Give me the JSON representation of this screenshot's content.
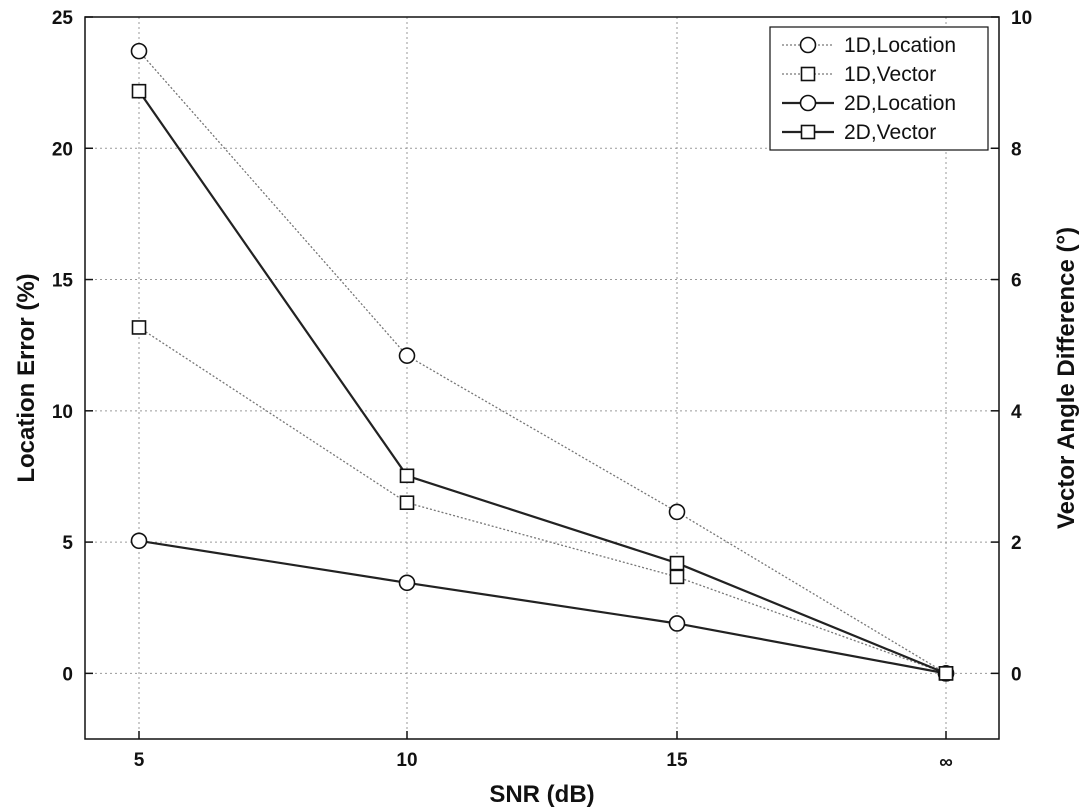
{
  "chart_data": {
    "type": "line",
    "x_axis": {
      "label": "SNR (dB)",
      "categories": [
        "5",
        "10",
        "15",
        "∞"
      ]
    },
    "y_axis_left": {
      "label": "Location Error (%)",
      "ylim": [
        -2.5,
        25
      ],
      "ticks": [
        0,
        5,
        10,
        15,
        20,
        25
      ]
    },
    "y_axis_right": {
      "label": "Vector Angle Difference (°)",
      "ylim": [
        -1,
        10
      ],
      "ticks": [
        0,
        2,
        4,
        6,
        8,
        10
      ]
    },
    "grid": true,
    "legend_position": "top-right",
    "series": [
      {
        "name": "1D,Location",
        "axis": "left",
        "marker": "circle",
        "line_style": "dotted",
        "values": [
          23.7,
          12.1,
          6.15,
          0
        ]
      },
      {
        "name": "1D,Vector",
        "axis": "right",
        "marker": "square",
        "line_style": "dotted",
        "values": [
          5.27,
          2.6,
          1.47,
          0
        ]
      },
      {
        "name": "2D,Location",
        "axis": "left",
        "marker": "circle",
        "line_style": "solid",
        "values": [
          5.05,
          3.45,
          1.9,
          0
        ]
      },
      {
        "name": "2D,Vector",
        "axis": "right",
        "marker": "square",
        "line_style": "solid",
        "values": [
          8.87,
          3.01,
          1.68,
          0
        ]
      }
    ]
  }
}
